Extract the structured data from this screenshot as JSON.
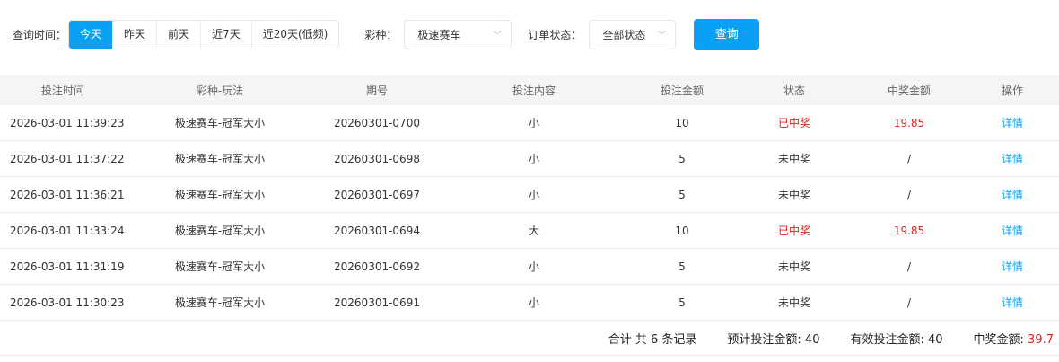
{
  "filters": {
    "time_label": "查询时间：",
    "time_options": [
      "今天",
      "昨天",
      "前天",
      "近7天",
      "近20天(低频)"
    ],
    "time_selected": "今天",
    "lottery_label": "彩种：",
    "lottery_value": "极速赛车",
    "status_label": "订单状态：",
    "status_value": "全部状态",
    "query_button": "查询",
    "accent_color": "#0aa1f5"
  },
  "table": {
    "headers": [
      "投注时间",
      "彩种-玩法",
      "期号",
      "投注内容",
      "投注金额",
      "状态",
      "中奖金额",
      "操作"
    ],
    "rows": [
      {
        "time": "2026-03-01 11:39:23",
        "game": "极速赛车-冠军大小",
        "issue": "20260301-0700",
        "content": "小",
        "amount": "10",
        "status": "已中奖",
        "win": "19.85",
        "action": "详情",
        "won": true
      },
      {
        "time": "2026-03-01 11:37:22",
        "game": "极速赛车-冠军大小",
        "issue": "20260301-0698",
        "content": "小",
        "amount": "5",
        "status": "未中奖",
        "win": "/",
        "action": "详情",
        "won": false
      },
      {
        "time": "2026-03-01 11:36:21",
        "game": "极速赛车-冠军大小",
        "issue": "20260301-0697",
        "content": "小",
        "amount": "5",
        "status": "未中奖",
        "win": "/",
        "action": "详情",
        "won": false
      },
      {
        "time": "2026-03-01 11:33:24",
        "game": "极速赛车-冠军大小",
        "issue": "20260301-0694",
        "content": "大",
        "amount": "10",
        "status": "已中奖",
        "win": "19.85",
        "action": "详情",
        "won": true
      },
      {
        "time": "2026-03-01 11:31:19",
        "game": "极速赛车-冠军大小",
        "issue": "20260301-0692",
        "content": "小",
        "amount": "5",
        "status": "未中奖",
        "win": "/",
        "action": "详情",
        "won": false
      },
      {
        "time": "2026-03-01 11:30:23",
        "game": "极速赛车-冠军大小",
        "issue": "20260301-0691",
        "content": "小",
        "amount": "5",
        "status": "未中奖",
        "win": "/",
        "action": "详情",
        "won": false
      }
    ]
  },
  "summary": {
    "total_records": "合计 共 6 条记录",
    "expected_label": "预计投注金额: ",
    "expected_value": "40",
    "valid_label": "有效投注金额: ",
    "valid_value": "40",
    "win_label": "中奖金额: ",
    "win_value": "39.7"
  }
}
